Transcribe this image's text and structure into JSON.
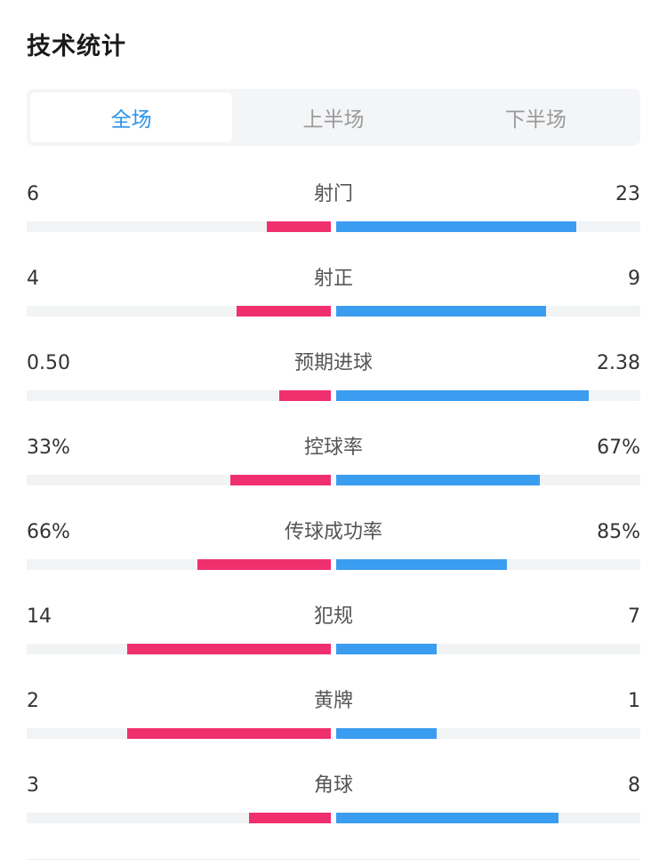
{
  "header": {
    "title": "技术统计"
  },
  "tabs": [
    {
      "label": "全场",
      "active": true
    },
    {
      "label": "上半场",
      "active": false
    },
    {
      "label": "下半场",
      "active": false
    }
  ],
  "colors": {
    "home": "#f0306e",
    "away": "#3a9df0",
    "accent": "#2a93e8"
  },
  "stats": [
    {
      "label": "射门",
      "home": "6",
      "away": "23",
      "home_fraction": 0.21,
      "away_fraction": 0.79
    },
    {
      "label": "射正",
      "home": "4",
      "away": "9",
      "home_fraction": 0.31,
      "away_fraction": 0.69
    },
    {
      "label": "预期进球",
      "home": "0.50",
      "away": "2.38",
      "home_fraction": 0.17,
      "away_fraction": 0.83
    },
    {
      "label": "控球率",
      "home": "33%",
      "away": "67%",
      "home_fraction": 0.33,
      "away_fraction": 0.67
    },
    {
      "label": "传球成功率",
      "home": "66%",
      "away": "85%",
      "home_fraction": 0.44,
      "away_fraction": 0.56
    },
    {
      "label": "犯规",
      "home": "14",
      "away": "7",
      "home_fraction": 0.67,
      "away_fraction": 0.33
    },
    {
      "label": "黄牌",
      "home": "2",
      "away": "1",
      "home_fraction": 0.67,
      "away_fraction": 0.33
    },
    {
      "label": "角球",
      "home": "3",
      "away": "8",
      "home_fraction": 0.27,
      "away_fraction": 0.73
    }
  ]
}
